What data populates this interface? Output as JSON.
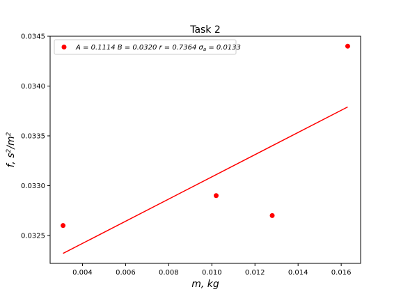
{
  "chart_data": {
    "type": "scatter",
    "title": "Task 2",
    "xlabel": "m, kg",
    "ylabel_base": "f, s",
    "ylabel_sup1": "2",
    "ylabel_mid": "/m",
    "ylabel_sup2": "2",
    "xlim": [
      0.0025,
      0.0169
    ],
    "ylim": [
      0.03222,
      0.0345
    ],
    "xticks": [
      0.004,
      0.006,
      0.008,
      0.01,
      0.012,
      0.014,
      0.016
    ],
    "xtick_labels": [
      "0.004",
      "0.006",
      "0.008",
      "0.010",
      "0.012",
      "0.014",
      "0.016"
    ],
    "yticks": [
      0.0325,
      0.033,
      0.0335,
      0.034,
      0.0345
    ],
    "ytick_labels": [
      "0.0325",
      "0.0330",
      "0.0335",
      "0.0340",
      "0.0345"
    ],
    "series": [
      {
        "kind": "points",
        "color": "#ff0000",
        "x": [
          0.0031,
          0.0102,
          0.0128,
          0.0163
        ],
        "y": [
          0.0326,
          0.0329,
          0.0327,
          0.0344
        ]
      },
      {
        "kind": "fit-line",
        "color": "#ff0000",
        "x": [
          0.0031,
          0.0163
        ],
        "y": [
          0.03232,
          0.03379
        ]
      }
    ],
    "legend": {
      "placement": "top-left",
      "text": "A = 0.1114 B = 0.0320 r = 0.7364 σ",
      "sub": "a",
      "tail": " = 0.0133"
    }
  }
}
